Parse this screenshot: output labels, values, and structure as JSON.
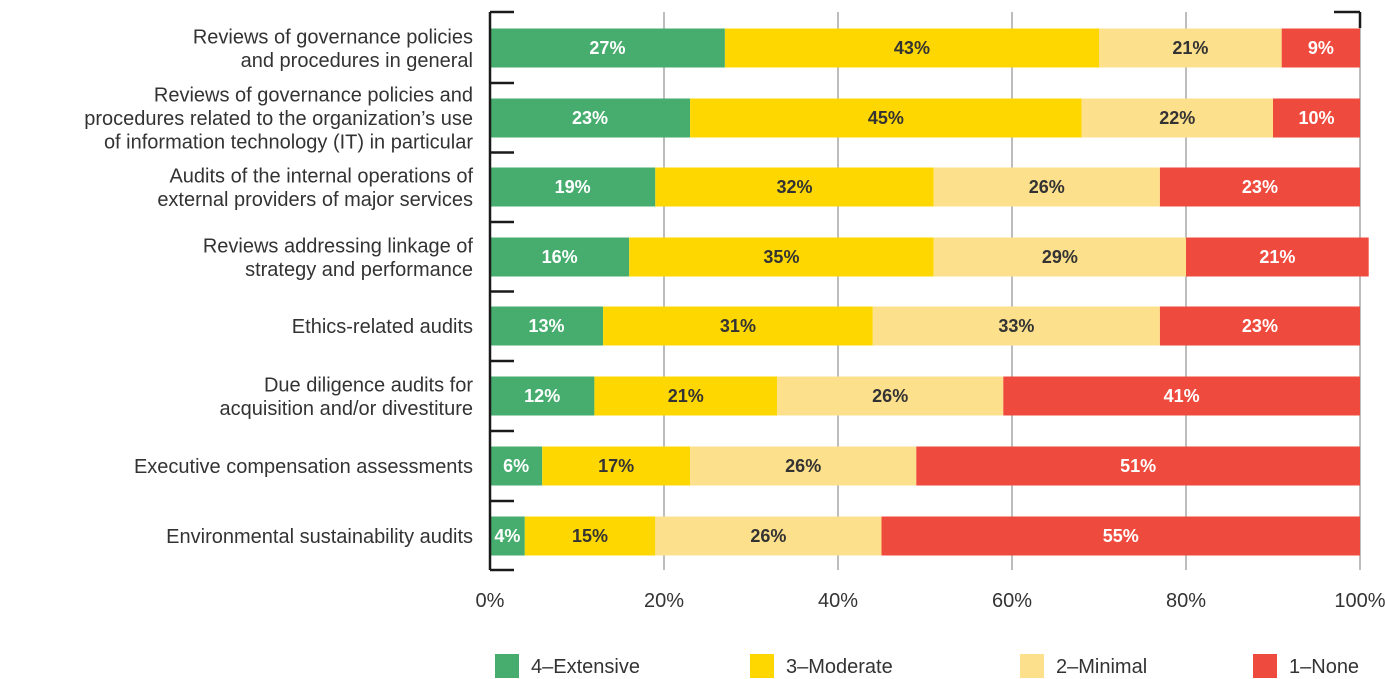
{
  "chart_data": {
    "type": "bar",
    "orientation": "horizontal",
    "stacked": true,
    "title": "",
    "xlabel": "",
    "ylabel": "",
    "xlim": [
      0,
      100
    ],
    "x_ticks": [
      "0%",
      "20%",
      "40%",
      "60%",
      "80%",
      "100%"
    ],
    "grid": "vertical",
    "legend_position": "bottom",
    "categories": [
      [
        "Reviews of governance policies",
        "and procedures in general"
      ],
      [
        "Reviews of governance policies and",
        "procedures related to the organization’s use",
        "of information technology (IT) in particular"
      ],
      [
        "Audits of the internal operations of",
        "external providers of major services"
      ],
      [
        "Reviews addressing linkage of",
        "strategy and performance"
      ],
      [
        "Ethics-related audits"
      ],
      [
        "Due diligence audits for",
        "acquisition and/or divestiture"
      ],
      [
        "Executive compensation assessments"
      ],
      [
        "Environmental sustainability audits"
      ]
    ],
    "series": [
      {
        "name": "4–Extensive",
        "color": "#46AD6E",
        "label_color": "#ffffff",
        "values": [
          27,
          23,
          19,
          16,
          13,
          12,
          6,
          4
        ]
      },
      {
        "name": "3–Moderate",
        "color": "#FFD700",
        "label_color": "#333333",
        "values": [
          43,
          45,
          32,
          35,
          31,
          21,
          17,
          15
        ]
      },
      {
        "name": "2–Minimal",
        "color": "#FDE08C",
        "label_color": "#333333",
        "values": [
          21,
          22,
          26,
          29,
          33,
          26,
          26,
          26
        ]
      },
      {
        "name": "1–None",
        "color": "#EF4A3E",
        "label_color": "#ffffff",
        "values": [
          9,
          10,
          23,
          21,
          23,
          41,
          51,
          55
        ]
      }
    ]
  }
}
